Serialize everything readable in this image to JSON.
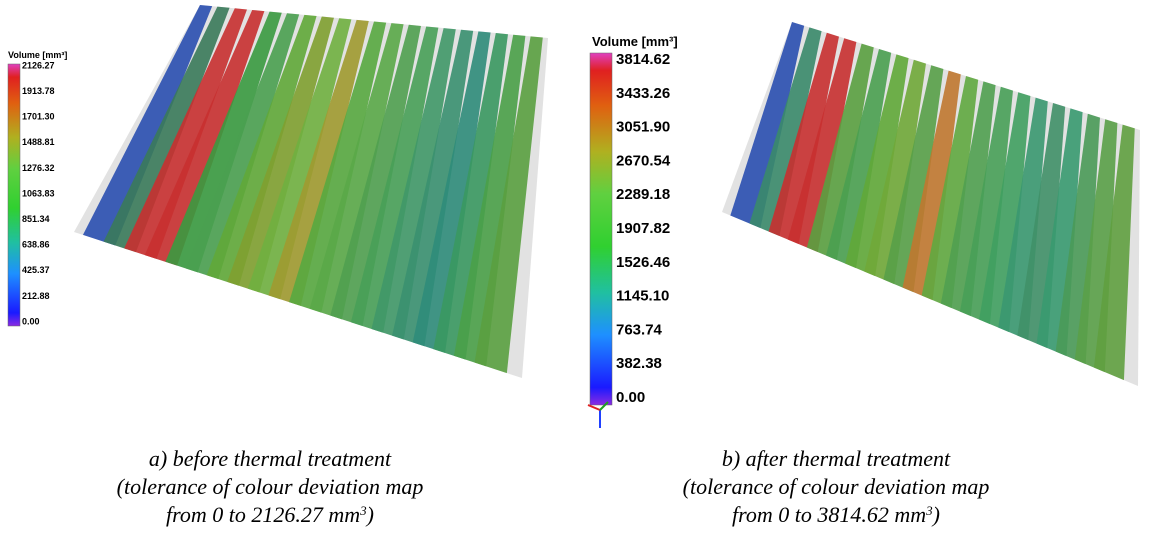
{
  "panels": [
    {
      "legend_title": "Volume [mm³]",
      "scale_labels": [
        "2126.27",
        "1913.78",
        "1701.30",
        "1488.81",
        "1276.32",
        "1063.83",
        "851.34",
        "638.86",
        "425.37",
        "212.88",
        "0.00"
      ],
      "caption": {
        "line1": "a) before thermal treatment",
        "line2": "(tolerance of colour deviation map",
        "line3": "from 0 to 2126.27 mm",
        "sup": "3",
        "close": ")"
      }
    },
    {
      "legend_title": "Volume [mm³]",
      "scale_labels": [
        "3814.62",
        "3433.26",
        "3051.90",
        "2670.54",
        "2289.18",
        "1907.82",
        "1526.46",
        "1145.10",
        "763.74",
        "382.38",
        "0.00"
      ],
      "caption": {
        "line1": "b) after thermal treatment",
        "line2": "(tolerance of colour deviation map",
        "line3": "from 0 to 3814.62 mm",
        "sup": "3",
        "close": ")"
      }
    }
  ]
}
